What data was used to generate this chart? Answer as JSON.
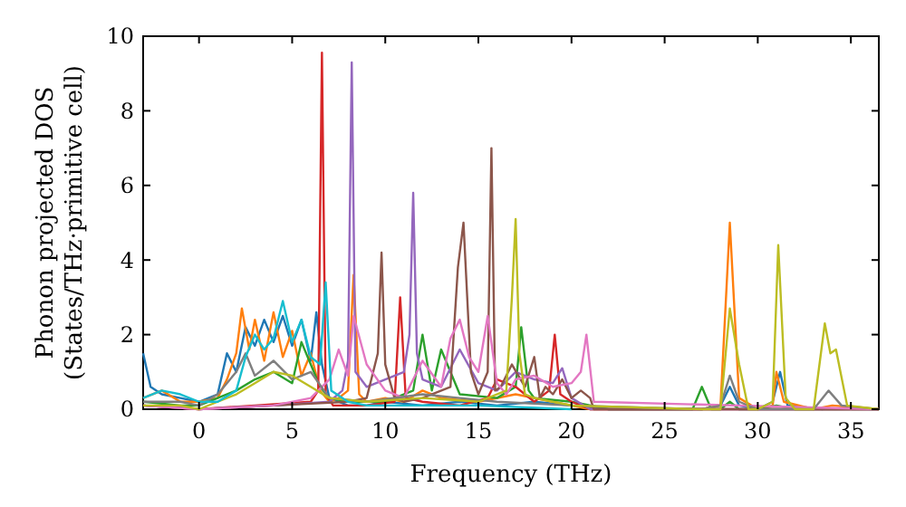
{
  "chart_data": {
    "type": "line",
    "xlabel": "Frequency (THz)",
    "ylabel": "Phonon projected DOS\n(States/THz·primitive cell)",
    "xlim": [
      -3,
      36.5
    ],
    "ylim": [
      0,
      10
    ],
    "xticks": [
      0,
      5,
      10,
      15,
      20,
      25,
      30,
      35
    ],
    "yticks": [
      0,
      2,
      4,
      6,
      8,
      10
    ],
    "grid": false,
    "marker": "none",
    "line_style": "solid",
    "series": [
      {
        "color": "#1f77b4",
        "x": [
          -3,
          -2.6,
          -2,
          -1,
          0,
          1,
          1.5,
          2,
          2.5,
          3,
          3.5,
          4,
          4.5,
          5,
          5.5,
          6,
          6.3,
          6.6,
          7,
          7.5,
          8,
          9,
          10,
          12,
          14,
          16,
          18,
          20,
          22,
          27,
          28,
          28.5,
          29,
          30,
          30.8,
          31.2,
          31.6,
          33.5
        ],
        "values": [
          1.5,
          0.6,
          0.4,
          0.3,
          0.2,
          0.4,
          1.5,
          1.0,
          2.2,
          1.7,
          2.4,
          1.8,
          2.5,
          1.7,
          2.4,
          1.3,
          2.6,
          1.2,
          0.3,
          0.2,
          0.1,
          0.1,
          0.2,
          0.1,
          0.2,
          0.1,
          0.2,
          0.1,
          0,
          0,
          0.1,
          0.6,
          0.1,
          0,
          0.2,
          1.0,
          0.1,
          0
        ]
      },
      {
        "color": "#ff7f0e",
        "x": [
          -3,
          -2,
          -1,
          0,
          1,
          1.5,
          2,
          2.3,
          2.7,
          3,
          3.5,
          4,
          4.5,
          5,
          5.5,
          6,
          6.5,
          7,
          7.5,
          8,
          8.3,
          8.6,
          9,
          10,
          11,
          12,
          13,
          15,
          17,
          19,
          21,
          27,
          28,
          28.5,
          29,
          30,
          30.8,
          31,
          31.4,
          33,
          34,
          36.5
        ],
        "values": [
          0.3,
          0.5,
          0.2,
          0.2,
          0.3,
          0.8,
          1.5,
          2.7,
          1.6,
          2.4,
          1.3,
          2.6,
          1.4,
          2.1,
          0.9,
          1.5,
          0.5,
          0.2,
          0.3,
          0.5,
          3.6,
          0.4,
          0.2,
          0.3,
          0.2,
          0.5,
          0.3,
          0.2,
          0.4,
          0.2,
          0,
          0,
          0.1,
          5.0,
          0.3,
          0,
          0.1,
          1.0,
          0.2,
          0,
          0.1,
          0
        ]
      },
      {
        "color": "#2ca02c",
        "x": [
          -3,
          -1,
          0,
          1,
          2,
          3,
          4,
          5,
          5.5,
          6,
          6.5,
          7,
          8,
          10,
          11.5,
          12,
          12.5,
          13,
          14,
          16,
          17,
          17.3,
          17.7,
          18,
          20,
          22,
          26.5,
          27,
          27.5,
          28,
          28.5,
          29,
          30,
          31,
          32,
          36.5
        ],
        "values": [
          0.2,
          0.1,
          0.1,
          0.3,
          0.5,
          0.8,
          1.0,
          0.7,
          1.8,
          1.2,
          0.6,
          0.3,
          0.2,
          0.2,
          0.5,
          2.0,
          0.5,
          1.6,
          0.4,
          0.3,
          0.6,
          2.2,
          0.5,
          0.3,
          0.2,
          0,
          0,
          0.6,
          0,
          0,
          0.2,
          0,
          0,
          0.1,
          0,
          0
        ]
      },
      {
        "color": "#d62728",
        "x": [
          -3,
          0,
          3,
          6,
          6.4,
          6.6,
          6.8,
          7.2,
          9,
          10.5,
          10.8,
          11.1,
          12,
          14,
          15.5,
          16,
          17,
          18,
          18.8,
          19.1,
          19.4,
          20,
          21,
          36.5
        ],
        "values": [
          0.1,
          0,
          0.1,
          0.2,
          0.5,
          9.56,
          0.4,
          0.1,
          0.1,
          0.2,
          3.0,
          0.3,
          0.2,
          0.1,
          0.3,
          0.8,
          0.6,
          0.2,
          0.5,
          2.0,
          0.4,
          0.2,
          0,
          0
        ]
      },
      {
        "color": "#9467bd",
        "x": [
          -3,
          0,
          4,
          7,
          7.7,
          8,
          8.2,
          8.4,
          9,
          10,
          11,
          11.3,
          11.5,
          11.7,
          12,
          13,
          14,
          15,
          16,
          17,
          18,
          19,
          19.5,
          20,
          21,
          36.5
        ],
        "values": [
          0.1,
          0,
          0.1,
          0.2,
          0.5,
          1.3,
          9.3,
          1.0,
          0.6,
          0.8,
          1.0,
          2.0,
          5.8,
          1.5,
          0.8,
          0.6,
          1.6,
          0.7,
          0.5,
          1.0,
          0.8,
          0.7,
          1.1,
          0.3,
          0,
          0
        ]
      },
      {
        "color": "#8c564b",
        "x": [
          -3,
          0,
          4,
          8,
          9,
          9.6,
          9.8,
          10,
          10.5,
          11,
          12,
          13.5,
          13.9,
          14.2,
          14.6,
          15,
          15.5,
          15.7,
          15.9,
          16.2,
          16.8,
          17.5,
          18,
          18.3,
          18.6,
          19,
          19.5,
          20,
          20.5,
          21,
          21.2,
          36.5
        ],
        "values": [
          0.1,
          0,
          0.1,
          0.2,
          0.3,
          1.5,
          4.2,
          1.2,
          0.3,
          0.2,
          0.3,
          0.6,
          3.8,
          5.0,
          1.0,
          0.4,
          1.0,
          7.0,
          0.5,
          0.6,
          1.2,
          0.6,
          1.4,
          0.3,
          0.6,
          0.4,
          0.8,
          0.3,
          0.5,
          0.3,
          0,
          0
        ]
      },
      {
        "color": "#e377c2",
        "x": [
          -3,
          0,
          4,
          6,
          7,
          7.5,
          8,
          8.3,
          9,
          10,
          11,
          12,
          13,
          13.5,
          14,
          14.5,
          15,
          15.5,
          16,
          16.5,
          17,
          18,
          19,
          20,
          20.5,
          20.8,
          21.2,
          36.5
        ],
        "values": [
          0.1,
          0,
          0.1,
          0.3,
          0.8,
          1.6,
          0.9,
          2.5,
          1.2,
          0.5,
          0.3,
          1.3,
          0.6,
          1.9,
          2.4,
          1.4,
          1.0,
          2.5,
          0.7,
          0.4,
          0.8,
          0.9,
          0.6,
          0.7,
          1.0,
          2.0,
          0.2,
          0
        ]
      },
      {
        "color": "#7f7f7f",
        "x": [
          -3,
          -1,
          0,
          1,
          2,
          2.5,
          3,
          4,
          5,
          6,
          7,
          9,
          12,
          14,
          16,
          20,
          27,
          28,
          28.5,
          29,
          30,
          33,
          33.8,
          34.5,
          36.5
        ],
        "values": [
          0.2,
          0.2,
          0.1,
          0.4,
          1.0,
          1.5,
          0.9,
          1.3,
          0.8,
          1.0,
          0.3,
          0.2,
          0.4,
          0.3,
          0.2,
          0.1,
          0,
          0.1,
          0.9,
          0.2,
          0,
          0,
          0.5,
          0.1,
          0
        ]
      },
      {
        "color": "#bcbd22",
        "x": [
          -3,
          -1,
          0,
          1,
          2,
          3,
          4,
          5,
          6,
          7,
          9,
          12,
          15,
          16.5,
          16.8,
          17,
          17.2,
          17.5,
          18,
          20,
          27,
          28,
          28.5,
          29,
          29.5,
          30,
          30.8,
          31.1,
          31.5,
          32,
          33,
          33.6,
          33.9,
          34.2,
          34.8,
          36.5
        ],
        "values": [
          0.1,
          0.1,
          0,
          0.2,
          0.4,
          0.7,
          1.0,
          0.9,
          0.6,
          0.3,
          0.2,
          0.3,
          0.2,
          0.5,
          3.0,
          5.1,
          1.5,
          0.4,
          0.3,
          0.1,
          0,
          0,
          2.7,
          1.2,
          0,
          0,
          0.2,
          4.4,
          0.3,
          0,
          0,
          2.3,
          1.5,
          1.6,
          0.1,
          0
        ]
      },
      {
        "color": "#17becf",
        "x": [
          -3,
          -2,
          -1,
          0,
          1,
          2,
          2.5,
          3,
          3.5,
          4,
          4.5,
          5,
          5.5,
          6,
          6.5,
          6.8,
          7.1,
          8,
          9,
          11,
          15,
          20
        ],
        "values": [
          0.3,
          0.5,
          0.4,
          0.2,
          0.2,
          0.5,
          1.4,
          2.0,
          1.6,
          1.9,
          2.9,
          1.8,
          2.4,
          1.4,
          1.2,
          3.4,
          0.5,
          0.2,
          0.1,
          0.1,
          0.1,
          0
        ]
      }
    ]
  }
}
